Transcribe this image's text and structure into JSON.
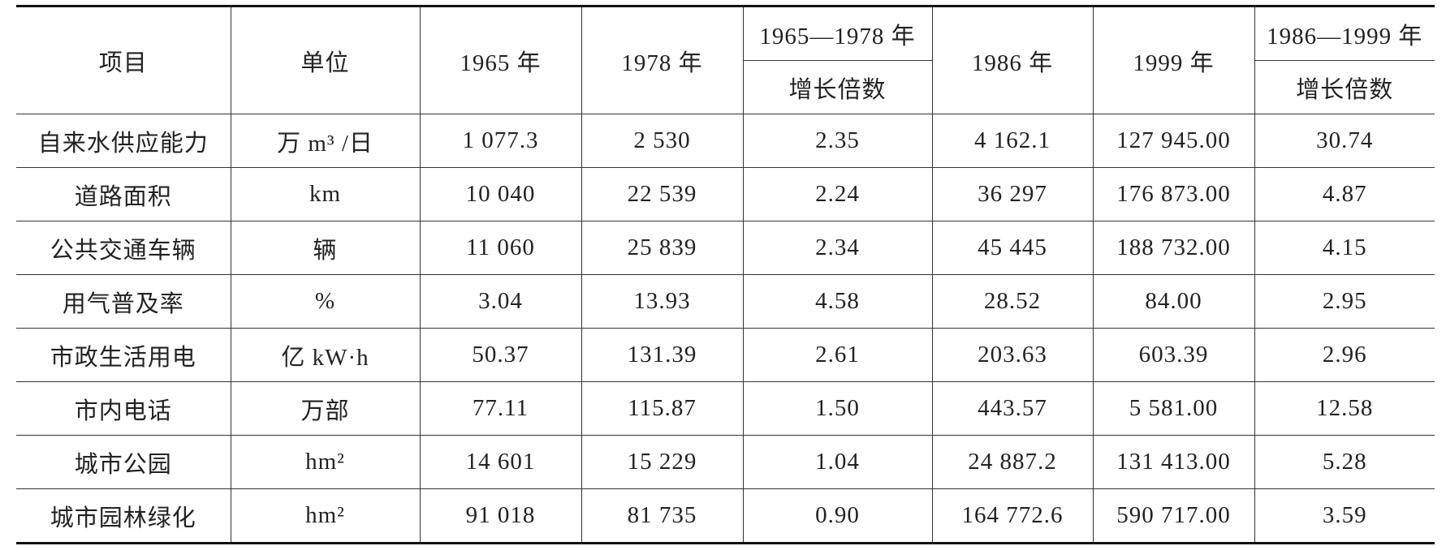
{
  "table": {
    "header": {
      "item": "项目",
      "unit": "单位",
      "y1965": "1965 年",
      "y1978": "1978 年",
      "group1": {
        "title": "1965—1978 年",
        "sub": "增长倍数"
      },
      "y1986": "1986 年",
      "y1999": "1999 年",
      "group2": {
        "title": "1986—1999 年",
        "sub": "增长倍数"
      }
    },
    "rows": [
      [
        "自来水供应能力",
        "万 m³ /日",
        "1 077.3",
        "2 530",
        "2.35",
        "4 162.1",
        "127 945.00",
        "30.74"
      ],
      [
        "道路面积",
        "km",
        "10 040",
        "22 539",
        "2.24",
        "36 297",
        "176 873.00",
        "4.87"
      ],
      [
        "公共交通车辆",
        "辆",
        "11 060",
        "25 839",
        "2.34",
        "45 445",
        "188 732.00",
        "4.15"
      ],
      [
        "用气普及率",
        "%",
        "3.04",
        "13.93",
        "4.58",
        "28.52",
        "84.00",
        "2.95"
      ],
      [
        "市政生活用电",
        "亿 kW·h",
        "50.37",
        "131.39",
        "2.61",
        "203.63",
        "603.39",
        "2.96"
      ],
      [
        "市内电话",
        "万部",
        "77.11",
        "115.87",
        "1.50",
        "443.57",
        "5 581.00",
        "12.58"
      ],
      [
        "城市公园",
        "hm²",
        "14 601",
        "15 229",
        "1.04",
        "24 887.2",
        "131 413.00",
        "5.28"
      ],
      [
        "城市园林绿化",
        "hm²",
        "91 018",
        "81 735",
        "0.90",
        "164 772.6",
        "590 717.00",
        "3.59"
      ]
    ]
  }
}
